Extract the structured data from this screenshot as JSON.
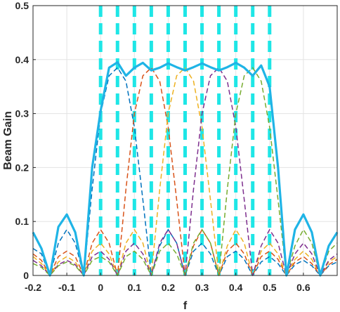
{
  "chart_data": {
    "type": "line",
    "title": "",
    "xlabel": "f",
    "ylabel": "Beam Gain",
    "xlim": [
      -0.2,
      0.7
    ],
    "ylim": [
      0,
      0.5
    ],
    "grid": true,
    "xticks": [
      -0.2,
      -0.1,
      0,
      0.1,
      0.2,
      0.3,
      0.4,
      0.5,
      0.6
    ],
    "xtick_labels": [
      "-0.2",
      "-0.1",
      "0",
      "0.1",
      "0.2",
      "0.3",
      "0.4",
      "0.5",
      "0.6"
    ],
    "yticks": [
      0,
      0.1,
      0.2,
      0.3,
      0.4,
      0.5
    ],
    "ytick_labels": [
      "0",
      "0.1",
      "0.2",
      "0.3",
      "0.4",
      "0.5"
    ],
    "vertical_markers": {
      "x": [
        0,
        0.05,
        0.1,
        0.15,
        0.2,
        0.25,
        0.3,
        0.35,
        0.4,
        0.45,
        0.5
      ],
      "color": "#1ee6e6",
      "style": "dashed"
    },
    "colors": {
      "beam1": "#0072bd",
      "beam2": "#d95319",
      "beam3": "#edb120",
      "beam4": "#7e2f8e",
      "beam5": "#77ac30",
      "combined": "#1fb4e6"
    },
    "series": [
      {
        "key": "beam1",
        "style": "dashed",
        "x": [
          -0.2,
          -0.175,
          -0.15,
          -0.125,
          -0.1,
          -0.075,
          -0.05,
          -0.025,
          0,
          0.025,
          0.05,
          0.075,
          0.1,
          0.125,
          0.15,
          0.175,
          0.2,
          0.225,
          0.25,
          0.275,
          0.3,
          0.325,
          0.35,
          0.375,
          0.4,
          0.425,
          0.45,
          0.475,
          0.5,
          0.525,
          0.55,
          0.575,
          0.6,
          0.625,
          0.65,
          0.675,
          0.7
        ],
        "y": [
          0.05,
          0.04,
          0.0,
          0.06,
          0.085,
          0.06,
          0.0,
          0.16,
          0.3,
          0.37,
          0.385,
          0.36,
          0.275,
          0.14,
          0.0,
          0.055,
          0.085,
          0.06,
          0.0,
          0.045,
          0.06,
          0.04,
          0.0,
          0.035,
          0.045,
          0.03,
          0.0,
          0.025,
          0.035,
          0.022,
          0.0,
          0.02,
          0.028,
          0.018,
          0.0,
          0.018,
          0.025
        ]
      },
      {
        "key": "beam2",
        "style": "dashed",
        "x": [
          -0.2,
          -0.175,
          -0.15,
          -0.125,
          -0.1,
          -0.075,
          -0.05,
          -0.025,
          0,
          0.025,
          0.05,
          0.075,
          0.1,
          0.125,
          0.15,
          0.175,
          0.2,
          0.225,
          0.25,
          0.275,
          0.3,
          0.325,
          0.35,
          0.375,
          0.4,
          0.425,
          0.45,
          0.475,
          0.5,
          0.525,
          0.55,
          0.575,
          0.6,
          0.625,
          0.65,
          0.675,
          0.7
        ],
        "y": [
          0.04,
          0.028,
          0.0,
          0.035,
          0.045,
          0.035,
          0.0,
          0.06,
          0.085,
          0.06,
          0.0,
          0.16,
          0.3,
          0.37,
          0.385,
          0.36,
          0.275,
          0.14,
          0.0,
          0.055,
          0.085,
          0.06,
          0.0,
          0.045,
          0.06,
          0.04,
          0.0,
          0.035,
          0.045,
          0.03,
          0.0,
          0.025,
          0.035,
          0.022,
          0.0,
          0.02,
          0.03
        ]
      },
      {
        "key": "beam3",
        "style": "dashed",
        "x": [
          -0.2,
          -0.175,
          -0.15,
          -0.125,
          -0.1,
          -0.075,
          -0.05,
          -0.025,
          0,
          0.025,
          0.05,
          0.075,
          0.1,
          0.125,
          0.15,
          0.175,
          0.2,
          0.225,
          0.25,
          0.275,
          0.3,
          0.325,
          0.35,
          0.375,
          0.4,
          0.425,
          0.45,
          0.475,
          0.5,
          0.525,
          0.55,
          0.575,
          0.6,
          0.625,
          0.65,
          0.675,
          0.7
        ],
        "y": [
          0.035,
          0.022,
          0.0,
          0.025,
          0.035,
          0.025,
          0.0,
          0.045,
          0.06,
          0.04,
          0.0,
          0.06,
          0.085,
          0.06,
          0.0,
          0.16,
          0.3,
          0.37,
          0.385,
          0.36,
          0.275,
          0.14,
          0.0,
          0.055,
          0.085,
          0.06,
          0.0,
          0.045,
          0.06,
          0.04,
          0.0,
          0.03,
          0.045,
          0.03,
          0.0,
          0.025,
          0.035
        ]
      },
      {
        "key": "beam4",
        "style": "dashed",
        "x": [
          -0.2,
          -0.175,
          -0.15,
          -0.125,
          -0.1,
          -0.075,
          -0.05,
          -0.025,
          0,
          0.025,
          0.05,
          0.075,
          0.1,
          0.125,
          0.15,
          0.175,
          0.2,
          0.225,
          0.25,
          0.275,
          0.3,
          0.325,
          0.35,
          0.375,
          0.4,
          0.425,
          0.45,
          0.475,
          0.5,
          0.525,
          0.55,
          0.575,
          0.6,
          0.625,
          0.65,
          0.675,
          0.7
        ],
        "y": [
          0.028,
          0.018,
          0.0,
          0.02,
          0.028,
          0.02,
          0.0,
          0.035,
          0.045,
          0.03,
          0.0,
          0.045,
          0.06,
          0.04,
          0.0,
          0.06,
          0.085,
          0.06,
          0.0,
          0.16,
          0.3,
          0.37,
          0.385,
          0.36,
          0.275,
          0.14,
          0.0,
          0.055,
          0.085,
          0.06,
          0.0,
          0.04,
          0.06,
          0.04,
          0.0,
          0.028,
          0.04
        ]
      },
      {
        "key": "beam5",
        "style": "dashed",
        "x": [
          -0.2,
          -0.175,
          -0.15,
          -0.125,
          -0.1,
          -0.075,
          -0.05,
          -0.025,
          0,
          0.025,
          0.05,
          0.075,
          0.1,
          0.125,
          0.15,
          0.175,
          0.2,
          0.225,
          0.25,
          0.275,
          0.3,
          0.325,
          0.35,
          0.375,
          0.4,
          0.425,
          0.45,
          0.475,
          0.5,
          0.525,
          0.55,
          0.575,
          0.6,
          0.625,
          0.65,
          0.675,
          0.7
        ],
        "y": [
          0.022,
          0.015,
          0.0,
          0.018,
          0.025,
          0.018,
          0.0,
          0.028,
          0.035,
          0.025,
          0.0,
          0.035,
          0.045,
          0.03,
          0.0,
          0.045,
          0.06,
          0.04,
          0.0,
          0.06,
          0.085,
          0.06,
          0.0,
          0.16,
          0.3,
          0.37,
          0.385,
          0.36,
          0.275,
          0.14,
          0.0,
          0.055,
          0.085,
          0.06,
          0.0,
          0.045,
          0.06
        ]
      },
      {
        "key": "combined",
        "style": "solid",
        "x": [
          -0.2,
          -0.175,
          -0.15,
          -0.125,
          -0.1,
          -0.075,
          -0.05,
          -0.025,
          0,
          0.025,
          0.05,
          0.075,
          0.1,
          0.125,
          0.15,
          0.175,
          0.2,
          0.225,
          0.25,
          0.275,
          0.3,
          0.325,
          0.35,
          0.375,
          0.4,
          0.425,
          0.45,
          0.475,
          0.5,
          0.525,
          0.55,
          0.575,
          0.6,
          0.625,
          0.65,
          0.675,
          0.7
        ],
        "y": [
          0.08,
          0.05,
          0.0,
          0.09,
          0.113,
          0.08,
          0.0,
          0.2,
          0.305,
          0.385,
          0.395,
          0.37,
          0.385,
          0.394,
          0.38,
          0.385,
          0.393,
          0.386,
          0.38,
          0.386,
          0.393,
          0.386,
          0.38,
          0.386,
          0.394,
          0.385,
          0.37,
          0.389,
          0.35,
          0.2,
          0.0,
          0.085,
          0.113,
          0.08,
          0.0,
          0.055,
          0.08
        ]
      }
    ]
  }
}
